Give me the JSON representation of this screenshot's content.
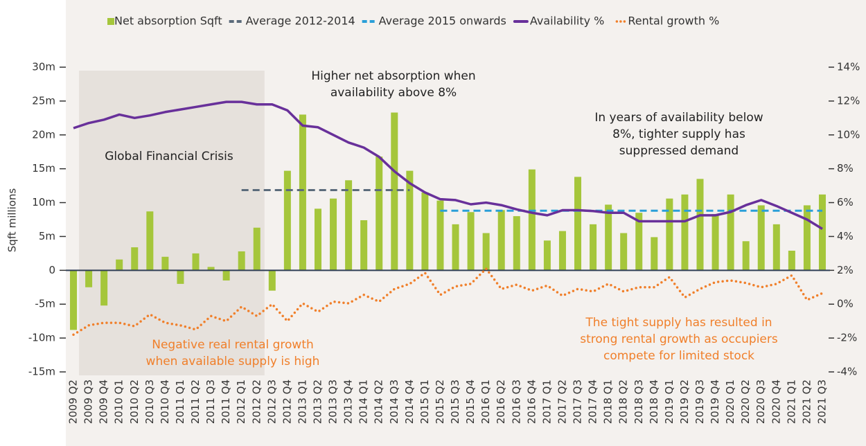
{
  "chart_data": {
    "type": "combo",
    "y_axis_label": "Sqft millions",
    "categories": [
      "2009 Q2",
      "2009 Q3",
      "2009 Q4",
      "2010 Q1",
      "2010 Q2",
      "2010 Q3",
      "2010 Q4",
      "2011 Q1",
      "2011 Q2",
      "2011 Q3",
      "2011 Q4",
      "2012 Q1",
      "2012 Q2",
      "2012 Q3",
      "2012 Q4",
      "2013 Q1",
      "2013 Q2",
      "2013 Q3",
      "2013 Q4",
      "2014 Q1",
      "2014 Q2",
      "2014 Q3",
      "2014 Q4",
      "2015 Q1",
      "2015 Q2",
      "2015 Q3",
      "2015 Q4",
      "2016 Q1",
      "2016 Q2",
      "2016 Q3",
      "2016 Q4",
      "2017 Q1",
      "2017 Q2",
      "2017 Q3",
      "2017 Q4",
      "2018 Q1",
      "2018 Q2",
      "2018 Q3",
      "2018 Q4",
      "2019 Q1",
      "2019 Q2",
      "2019 Q3",
      "2019 Q4",
      "2020 Q1",
      "2020 Q2",
      "2020 Q3",
      "2020 Q4",
      "2021 Q1",
      "2021 Q2",
      "2021 Q3"
    ],
    "series": [
      {
        "name": "Net absorption Sqft",
        "type": "bar",
        "color": "#a5c63b",
        "values": [
          -8.8,
          -2.5,
          -5.2,
          1.6,
          3.4,
          8.7,
          2.0,
          -2.0,
          2.5,
          0.5,
          -1.5,
          2.8,
          6.3,
          -3.0,
          14.7,
          23.0,
          9.1,
          10.6,
          13.3,
          7.4,
          16.8,
          23.3,
          14.7,
          11.5,
          10.3,
          6.8,
          8.6,
          5.5,
          8.9,
          8.0,
          14.9,
          4.4,
          5.8,
          13.8,
          6.8,
          9.7,
          5.5,
          8.5,
          4.9,
          10.6,
          11.2,
          13.5,
          8.3,
          11.2,
          4.3,
          9.6,
          6.8,
          2.9,
          9.6,
          11.2
        ]
      },
      {
        "name": "Average 2012-2014",
        "type": "dashed",
        "color": "#5b6b7b",
        "values": [
          null,
          null,
          null,
          null,
          null,
          null,
          null,
          null,
          null,
          null,
          null,
          11.85,
          11.85,
          11.85,
          11.85,
          11.85,
          11.85,
          11.85,
          11.85,
          11.85,
          11.85,
          11.85,
          11.85,
          null,
          null,
          null,
          null,
          null,
          null,
          null,
          null,
          null,
          null,
          null,
          null,
          null,
          null,
          null,
          null,
          null,
          null,
          null,
          null,
          null,
          null,
          null,
          null,
          null,
          null,
          null
        ]
      },
      {
        "name": "Average 2015 onwards",
        "type": "dashed",
        "color": "#2a9fd8",
        "values": [
          null,
          null,
          null,
          null,
          null,
          null,
          null,
          null,
          null,
          null,
          null,
          null,
          null,
          null,
          null,
          null,
          null,
          null,
          null,
          null,
          null,
          null,
          null,
          null,
          8.8,
          8.8,
          8.8,
          8.8,
          8.8,
          8.8,
          8.8,
          8.8,
          8.8,
          8.8,
          8.8,
          8.8,
          8.8,
          8.8,
          8.8,
          8.8,
          8.8,
          8.8,
          8.8,
          8.8,
          8.8,
          8.8,
          8.8,
          8.8,
          8.8,
          8.8
        ]
      },
      {
        "name": "Availability %",
        "type": "line",
        "axis": "y2",
        "color": "#68309a",
        "values": [
          10.4,
          10.7,
          10.9,
          11.2,
          11.0,
          11.15,
          11.35,
          11.5,
          11.65,
          11.8,
          11.95,
          11.95,
          11.8,
          11.8,
          11.45,
          10.55,
          10.45,
          10.0,
          9.55,
          9.25,
          8.7,
          7.85,
          7.15,
          6.6,
          6.2,
          6.15,
          5.9,
          6.0,
          5.85,
          5.6,
          5.4,
          5.25,
          5.55,
          5.55,
          5.5,
          5.4,
          5.4,
          4.9,
          4.9,
          4.9,
          4.9,
          5.25,
          5.25,
          5.45,
          5.85,
          6.15,
          5.8,
          5.4,
          5.0,
          4.45
        ]
      },
      {
        "name": "Rental growth %",
        "type": "dotted",
        "axis": "y2",
        "color": "#f07f2a",
        "values": [
          -1.8,
          -1.25,
          -1.1,
          -1.1,
          -1.3,
          -0.6,
          -1.1,
          -1.25,
          -1.5,
          -0.7,
          -1.0,
          -0.15,
          -0.7,
          0.0,
          -1.0,
          0.05,
          -0.45,
          0.15,
          0.05,
          0.55,
          0.15,
          0.9,
          1.2,
          1.85,
          0.55,
          1.05,
          1.2,
          2.1,
          0.9,
          1.15,
          0.8,
          1.1,
          0.5,
          0.9,
          0.75,
          1.2,
          0.75,
          1.0,
          1.0,
          1.6,
          0.4,
          0.9,
          1.3,
          1.4,
          1.25,
          1.0,
          1.2,
          1.7,
          0.25,
          0.65
        ]
      }
    ],
    "ylim": [
      -15,
      30
    ],
    "yticks": [
      {
        "value": -15,
        "label": "-15m"
      },
      {
        "value": -10,
        "label": "-10m"
      },
      {
        "value": -5,
        "label": "-5m"
      },
      0,
      {
        "value": 5,
        "label": "5m"
      },
      {
        "value": 10,
        "label": "10m"
      },
      {
        "value": 15,
        "label": "15m"
      },
      {
        "value": 20,
        "label": "20m"
      },
      {
        "value": 25,
        "label": "25m"
      },
      {
        "value": 30,
        "label": "30m"
      }
    ],
    "y2lim": [
      -4,
      14
    ],
    "y2ticks": [
      {
        "value": -4,
        "label": "-4%"
      },
      {
        "value": -2,
        "label": "-2%"
      },
      {
        "value": 0,
        "label": "0%"
      },
      {
        "value": 2,
        "label": "2%"
      },
      {
        "value": 4,
        "label": "4%"
      },
      {
        "value": 6,
        "label": "6%"
      },
      {
        "value": 8,
        "label": "8%"
      },
      {
        "value": 10,
        "label": "10%"
      },
      {
        "value": 12,
        "label": "12%"
      },
      {
        "value": 14,
        "label": "14%"
      }
    ],
    "legend": "top",
    "annotations": [
      {
        "lines": [
          "Global Financial Crisis"
        ],
        "color": "#222222"
      },
      {
        "lines": [
          "Higher net absorption when",
          "availability above 8%"
        ],
        "color": "#222222"
      },
      {
        "lines": [
          "In years of availability below",
          "8%, tighter supply has",
          "suppressed demand"
        ],
        "color": "#222222"
      },
      {
        "lines": [
          "Negative real rental growth",
          "when available supply is high"
        ],
        "color": "#f07f2a"
      },
      {
        "lines": [
          "The tight supply has resulted in",
          "strong rental growth as occupiers",
          "compete for limited stock"
        ],
        "color": "#f07f2a"
      }
    ]
  }
}
